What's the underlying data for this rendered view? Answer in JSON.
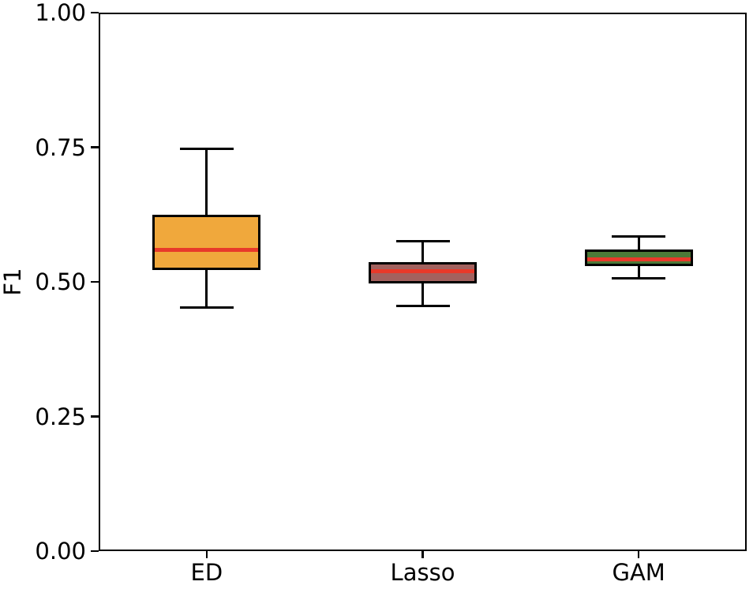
{
  "chart_data": {
    "type": "boxplot",
    "title": "",
    "xlabel": "",
    "ylabel": "F1",
    "ylim": [
      0.0,
      1.0
    ],
    "yticks": [
      {
        "value": 0.0,
        "label": "0.00"
      },
      {
        "value": 0.25,
        "label": "0.25"
      },
      {
        "value": 0.5,
        "label": "0.50"
      },
      {
        "value": 0.75,
        "label": "0.75"
      },
      {
        "value": 1.0,
        "label": "1.00"
      }
    ],
    "categories": [
      "ED",
      "Lasso",
      "GAM"
    ],
    "series": [
      {
        "name": "ED",
        "whislo": 0.452,
        "q1": 0.522,
        "med": 0.56,
        "q3": 0.625,
        "whishi": 0.747,
        "fill_color": "#F0A83C"
      },
      {
        "name": "Lasso",
        "whislo": 0.456,
        "q1": 0.497,
        "med": 0.52,
        "q3": 0.536,
        "whishi": 0.576,
        "fill_color": "#A3615E"
      },
      {
        "name": "GAM",
        "whislo": 0.507,
        "q1": 0.53,
        "med": 0.542,
        "q3": 0.56,
        "whishi": 0.584,
        "fill_color": "#4C7A38"
      }
    ],
    "median_color": "#E8392A",
    "edge_color": "#000000",
    "grid": false,
    "legend": "none"
  }
}
